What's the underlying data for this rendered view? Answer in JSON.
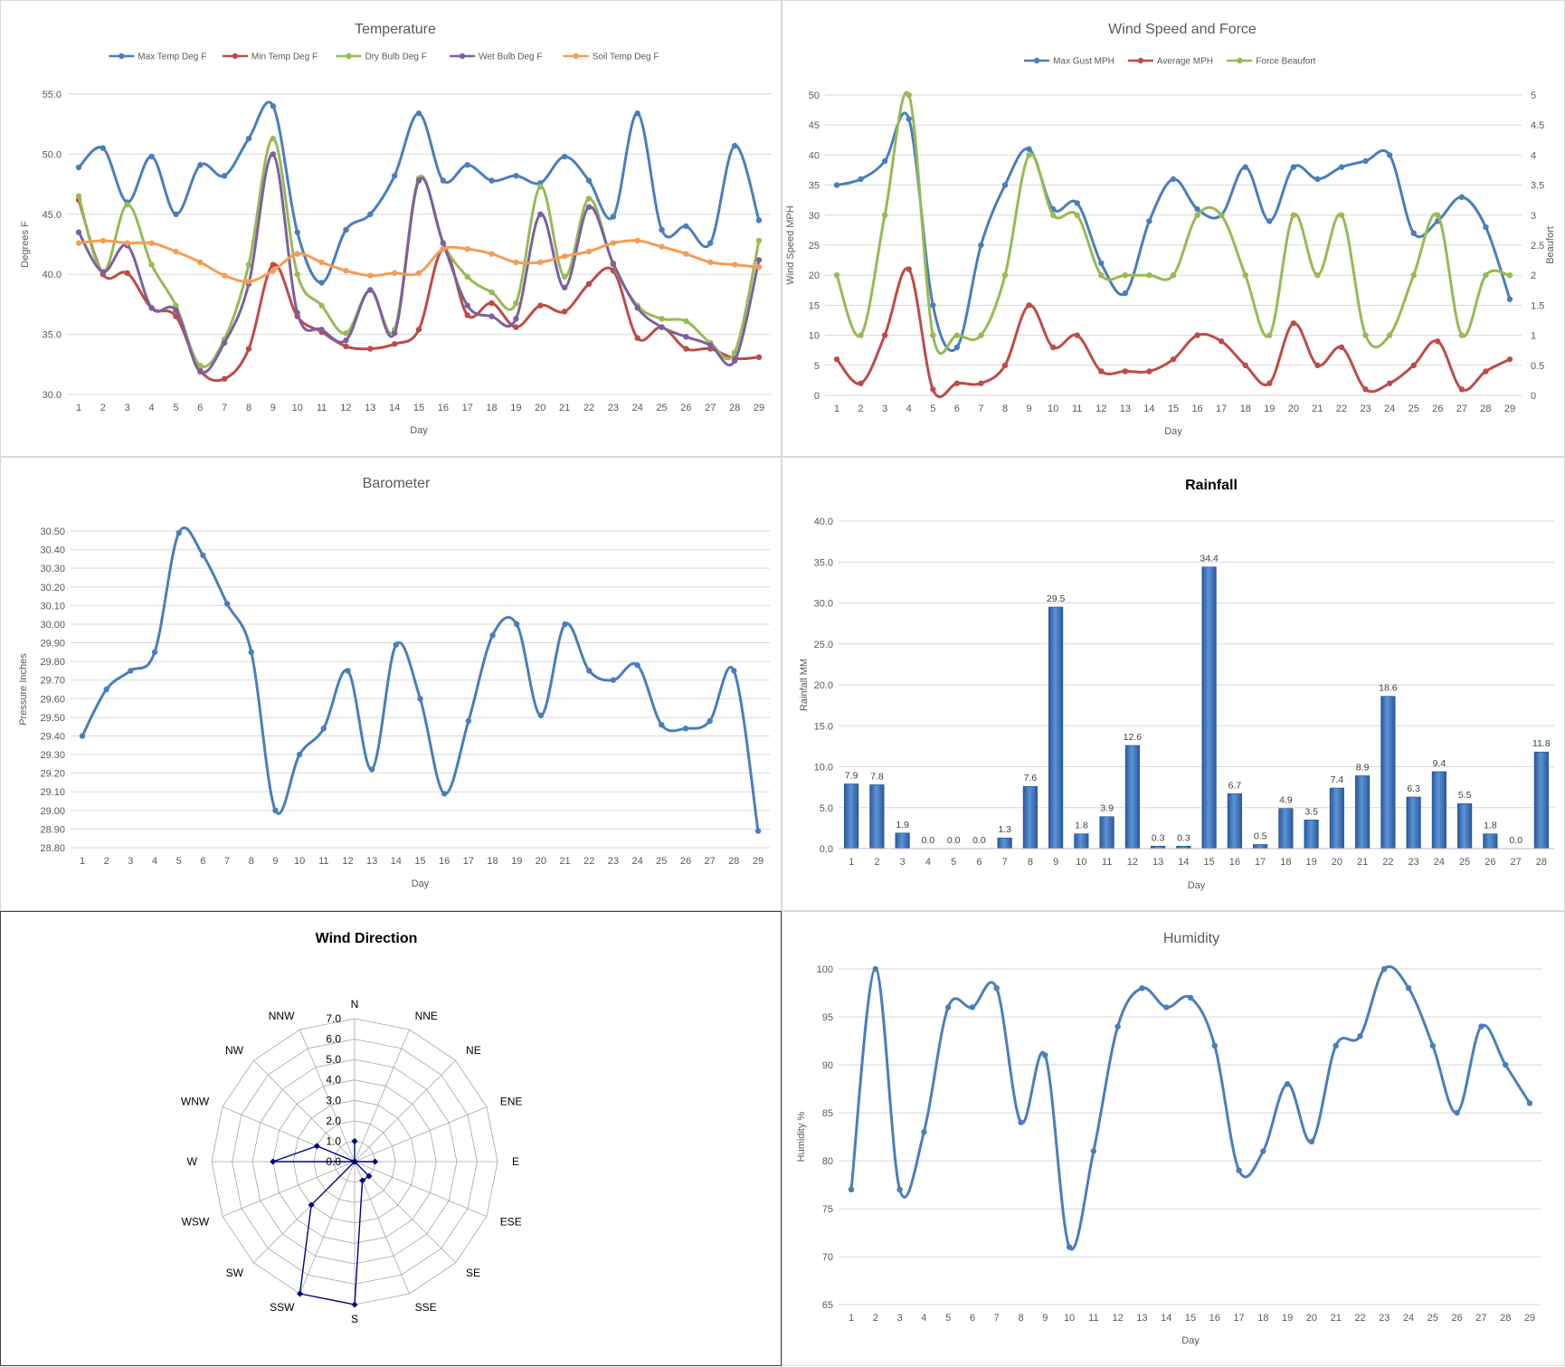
{
  "chart_data": [
    {
      "id": "temperature",
      "type": "line",
      "title": "Temperature",
      "xlabel": "Day",
      "ylabel": "Degrees F",
      "ylim": [
        30,
        55
      ],
      "yticks": [
        "30.0",
        "35.0",
        "40.0",
        "45.0",
        "50.0",
        "55.0"
      ],
      "legend": "top",
      "x": [
        1,
        2,
        3,
        4,
        5,
        6,
        7,
        8,
        9,
        10,
        11,
        12,
        13,
        14,
        15,
        16,
        17,
        18,
        19,
        20,
        21,
        22,
        23,
        24,
        25,
        26,
        27,
        28,
        29
      ],
      "series": [
        {
          "name": "Max Temp Deg F",
          "color": "#4a7ebb",
          "values": [
            48.9,
            50.5,
            46.0,
            49.8,
            45.0,
            49.1,
            48.2,
            51.3,
            54.0,
            43.5,
            39.3,
            43.7,
            45.0,
            48.2,
            53.4,
            47.8,
            49.1,
            47.8,
            48.2,
            47.6,
            49.8,
            47.8,
            44.8,
            53.4,
            43.7,
            44.0,
            42.6,
            50.7,
            44.5
          ]
        },
        {
          "name": "Min Temp Deg F",
          "color": "#be4b48",
          "values": [
            46.2,
            40.0,
            40.1,
            37.2,
            36.5,
            32.0,
            31.3,
            33.8,
            40.8,
            36.5,
            35.2,
            34.0,
            33.8,
            34.2,
            35.4,
            42.1,
            36.6,
            37.6,
            35.6,
            37.4,
            36.9,
            39.2,
            40.3,
            34.7,
            35.6,
            33.8,
            33.8,
            33.0,
            33.1
          ]
        },
        {
          "name": "Dry Bulb Deg F",
          "color": "#98b954",
          "values": [
            46.5,
            40.2,
            45.8,
            40.8,
            37.4,
            32.4,
            34.6,
            40.8,
            51.3,
            40.0,
            37.4,
            35.1,
            38.7,
            35.4,
            48.0,
            42.6,
            39.8,
            38.5,
            37.6,
            47.3,
            39.8,
            46.3,
            40.8,
            37.4,
            36.3,
            36.1,
            34.3,
            33.5,
            42.8
          ]
        },
        {
          "name": "Wet Bulb Deg F",
          "color": "#7d5fa0",
          "values": [
            43.5,
            40.2,
            42.4,
            37.2,
            37.0,
            31.9,
            34.3,
            39.2,
            50.0,
            36.8,
            35.4,
            34.5,
            38.7,
            35.1,
            47.8,
            42.6,
            37.4,
            36.5,
            36.3,
            45.0,
            38.9,
            45.6,
            40.9,
            37.2,
            35.6,
            34.8,
            34.1,
            32.8,
            41.2
          ]
        },
        {
          "name": "Soil Temp Deg F",
          "color": "#f59d56",
          "values": [
            42.6,
            42.8,
            42.6,
            42.6,
            41.9,
            41.0,
            39.9,
            39.4,
            40.3,
            41.7,
            41.0,
            40.3,
            39.9,
            40.1,
            40.1,
            42.1,
            42.1,
            41.7,
            41.0,
            41.0,
            41.5,
            41.9,
            42.6,
            42.8,
            42.3,
            41.7,
            41.0,
            40.8,
            40.6
          ]
        }
      ]
    },
    {
      "id": "wind",
      "type": "line",
      "title": "Wind Speed and Force",
      "xlabel": "Day",
      "ylabel": "Wind Speed MPH",
      "ylabel2": "Beaufort",
      "ylim": [
        0,
        50
      ],
      "ylim2": [
        0,
        5
      ],
      "yticks": [
        "0",
        "5",
        "10",
        "15",
        "20",
        "25",
        "30",
        "35",
        "40",
        "45",
        "50"
      ],
      "yticks2": [
        "0",
        "0.5",
        "1",
        "1.5",
        "2",
        "2.5",
        "3",
        "3.5",
        "4",
        "4.5",
        "5"
      ],
      "legend": "top",
      "x": [
        1,
        2,
        3,
        4,
        5,
        6,
        7,
        8,
        9,
        10,
        11,
        12,
        13,
        14,
        15,
        16,
        17,
        18,
        19,
        20,
        21,
        22,
        23,
        24,
        25,
        26,
        27,
        28,
        29
      ],
      "series": [
        {
          "name": "Max Gust MPH",
          "color": "#4a7ebb",
          "axis": "left",
          "values": [
            35,
            36,
            39,
            46,
            15,
            8,
            25,
            35,
            41,
            31,
            32,
            22,
            17,
            29,
            36,
            31,
            30,
            38,
            29,
            38,
            36,
            38,
            39,
            40,
            27,
            29,
            33,
            28,
            16
          ]
        },
        {
          "name": "Average MPH",
          "color": "#be4b48",
          "axis": "left",
          "values": [
            6,
            2,
            10,
            21,
            1,
            2,
            2,
            5,
            15,
            8,
            10,
            4,
            4,
            4,
            6,
            10,
            9,
            5,
            2,
            12,
            5,
            8,
            1,
            2,
            5,
            9,
            1,
            4,
            6
          ]
        },
        {
          "name": "Force Beaufort",
          "color": "#98b954",
          "axis": "right",
          "values": [
            2,
            1,
            3,
            5,
            1,
            1,
            1,
            2,
            4,
            3,
            3,
            2,
            2,
            2,
            2,
            3,
            3,
            2,
            1,
            3,
            2,
            3,
            1,
            1,
            2,
            3,
            1,
            2,
            2
          ]
        }
      ]
    },
    {
      "id": "barometer",
      "type": "line",
      "title": "Barometer",
      "xlabel": "Day",
      "ylabel": "Pressure Inches",
      "ylim": [
        28.8,
        30.5
      ],
      "yticks": [
        "28.80",
        "28.90",
        "29.00",
        "29.10",
        "29.20",
        "29.30",
        "29.40",
        "29.50",
        "29.60",
        "29.70",
        "29.80",
        "29.90",
        "30.00",
        "30.10",
        "30.20",
        "30.30",
        "30.40",
        "30.50"
      ],
      "x": [
        1,
        2,
        3,
        4,
        5,
        6,
        7,
        8,
        9,
        10,
        11,
        12,
        13,
        14,
        15,
        16,
        17,
        18,
        19,
        20,
        21,
        22,
        23,
        24,
        25,
        26,
        27,
        28,
        29
      ],
      "series": [
        {
          "name": "Pressure",
          "color": "#4a7ebb",
          "values": [
            29.4,
            29.65,
            29.75,
            29.85,
            30.49,
            30.37,
            30.11,
            29.85,
            29.0,
            29.3,
            29.44,
            29.75,
            29.22,
            29.89,
            29.6,
            29.09,
            29.48,
            29.94,
            30.0,
            29.51,
            30.0,
            29.75,
            29.7,
            29.78,
            29.46,
            29.44,
            29.48,
            29.75,
            28.89
          ]
        }
      ]
    },
    {
      "id": "rainfall",
      "type": "bar",
      "title": "Rainfall",
      "xlabel": "Day",
      "ylabel": "Rainfall MM",
      "ylim": [
        0,
        40
      ],
      "yticks": [
        "0.0",
        "5.0",
        "10.0",
        "15.0",
        "20.0",
        "25.0",
        "30.0",
        "35.0",
        "40.0"
      ],
      "categories": [
        "1",
        "2",
        "3",
        "4",
        "5",
        "6",
        "7",
        "8",
        "9",
        "10",
        "11",
        "12",
        "13",
        "14",
        "15",
        "16",
        "17",
        "18",
        "19",
        "20",
        "21",
        "22",
        "23",
        "24",
        "25",
        "26",
        "27",
        "28"
      ],
      "values": [
        7.9,
        7.8,
        1.9,
        0.0,
        0.0,
        0.0,
        1.3,
        7.6,
        29.5,
        1.8,
        3.9,
        12.6,
        0.3,
        0.3,
        34.4,
        6.7,
        0.5,
        4.9,
        3.5,
        7.4,
        8.9,
        18.6,
        6.3,
        9.4,
        5.5,
        1.8,
        0.0,
        11.8
      ],
      "value_labels": [
        "7.9",
        "7.8",
        "1.9",
        "0.0",
        "0.0",
        "0.0",
        "1.3",
        "7.6",
        "29.5",
        "1.8",
        "3.9",
        "12.6",
        "0.3",
        "0.3",
        "34.4",
        "6.7",
        "0.5",
        "4.9",
        "3.5",
        "7.4",
        "8.9",
        "18.6",
        "6.3",
        "9.4",
        "5.5",
        "1.8",
        "0.0",
        "11.8"
      ],
      "color": "#4a7ebb"
    },
    {
      "id": "wind_direction",
      "type": "radar",
      "title": "Wind Direction",
      "rlim": [
        0,
        7
      ],
      "rticks": [
        "0.0",
        "1.0",
        "2.0",
        "3.0",
        "4.0",
        "5.0",
        "6.0",
        "7.0"
      ],
      "categories": [
        "N",
        "NNE",
        "NE",
        "ENE",
        "E",
        "ESE",
        "SE",
        "SSE",
        "S",
        "SSW",
        "SW",
        "WSW",
        "W",
        "WNW",
        "NW",
        "NNW"
      ],
      "values": [
        1,
        0,
        0,
        0,
        1,
        0,
        1,
        1,
        7,
        7,
        3,
        0,
        4,
        2,
        0,
        0
      ],
      "color": "#000080"
    },
    {
      "id": "humidity",
      "type": "line",
      "title": "Humidity",
      "xlabel": "Day",
      "ylabel": "Humidity %",
      "ylim": [
        65,
        100
      ],
      "yticks": [
        "65",
        "70",
        "75",
        "80",
        "85",
        "90",
        "95",
        "100"
      ],
      "x": [
        1,
        2,
        3,
        4,
        5,
        6,
        7,
        8,
        9,
        10,
        11,
        12,
        13,
        14,
        15,
        16,
        17,
        18,
        19,
        20,
        21,
        22,
        23,
        24,
        25,
        26,
        27,
        28,
        29
      ],
      "series": [
        {
          "name": "Humidity",
          "color": "#4a7ebb",
          "values": [
            77,
            100,
            77,
            83,
            96,
            96,
            98,
            84,
            91,
            71,
            81,
            94,
            98,
            96,
            97,
            92,
            79,
            81,
            88,
            82,
            92,
            93,
            100,
            98,
            92,
            85,
            94,
            90,
            86
          ]
        }
      ]
    }
  ]
}
